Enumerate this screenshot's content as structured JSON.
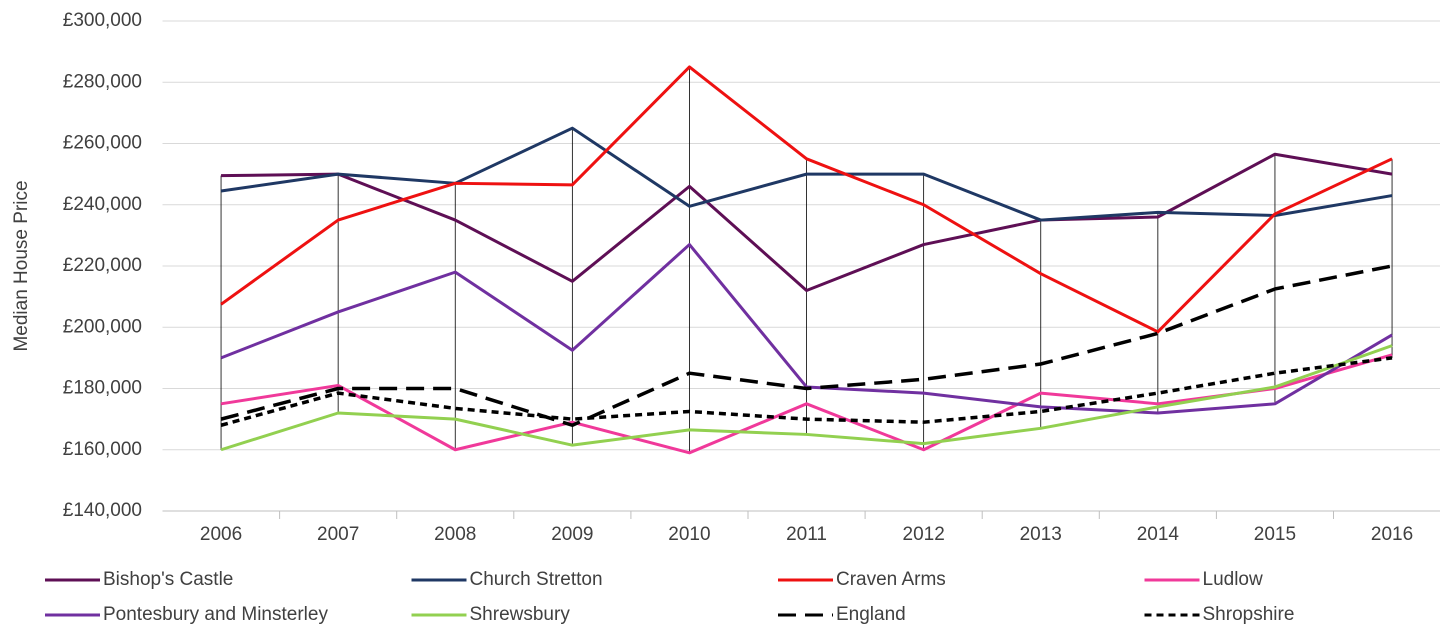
{
  "chart_data": {
    "type": "line",
    "y_label": "Median House Price",
    "categories": [
      "2006",
      "2007",
      "2008",
      "2009",
      "2010",
      "2011",
      "2012",
      "2013",
      "2014",
      "2015",
      "2016"
    ],
    "ylim": [
      140000,
      300000
    ],
    "yticks": [
      {
        "value": 140000,
        "label": "£140,000"
      },
      {
        "value": 160000,
        "label": "£160,000"
      },
      {
        "value": 180000,
        "label": "£180,000"
      },
      {
        "value": 200000,
        "label": "£200,000"
      },
      {
        "value": 220000,
        "label": "£220,000"
      },
      {
        "value": 240000,
        "label": "£240,000"
      },
      {
        "value": 260000,
        "label": "£260,000"
      },
      {
        "value": 280000,
        "label": "£280,000"
      },
      {
        "value": 300000,
        "label": "£300,000"
      }
    ],
    "grid": true,
    "high_low_lines": true,
    "legend": "bottom",
    "series": [
      {
        "name": "Bishop's Castle",
        "color": "#5e0f55",
        "dash": "solid",
        "values": [
          249500,
          250000,
          235000,
          215000,
          246000,
          212000,
          227000,
          235000,
          236000,
          256500,
          250000
        ]
      },
      {
        "name": "Church Stretton",
        "color": "#1f3864",
        "dash": "solid",
        "values": [
          244500,
          250000,
          247000,
          265000,
          239500,
          250000,
          250000,
          235000,
          237500,
          236500,
          243000
        ]
      },
      {
        "name": "Craven Arms",
        "color": "#ee1111",
        "dash": "solid",
        "values": [
          207500,
          235000,
          247000,
          246500,
          285000,
          255000,
          240000,
          217500,
          198500,
          237000,
          255000
        ]
      },
      {
        "name": "Ludlow",
        "color": "#f0399a",
        "dash": "solid",
        "values": [
          175000,
          181000,
          160000,
          169000,
          159000,
          175000,
          160000,
          178500,
          175000,
          180000,
          191000
        ]
      },
      {
        "name": "Pontesbury and Minsterley",
        "color": "#7030a0",
        "dash": "solid",
        "values": [
          190000,
          205000,
          218000,
          192500,
          227000,
          180500,
          178500,
          174000,
          172000,
          175000,
          197500
        ]
      },
      {
        "name": "Shrewsbury",
        "color": "#92d050",
        "dash": "solid",
        "values": [
          160000,
          172000,
          170000,
          161500,
          166500,
          165000,
          162000,
          167000,
          174000,
          180500,
          194000
        ]
      },
      {
        "name": "England",
        "color": "#000000",
        "dash": "long",
        "values": [
          170000,
          180000,
          180000,
          168000,
          185000,
          180000,
          183000,
          188000,
          198000,
          212500,
          220000
        ]
      },
      {
        "name": "Shropshire",
        "color": "#000000",
        "dash": "short",
        "values": [
          168000,
          178500,
          173500,
          170000,
          172500,
          170000,
          169000,
          172500,
          178500,
          185000,
          190000
        ]
      }
    ]
  }
}
